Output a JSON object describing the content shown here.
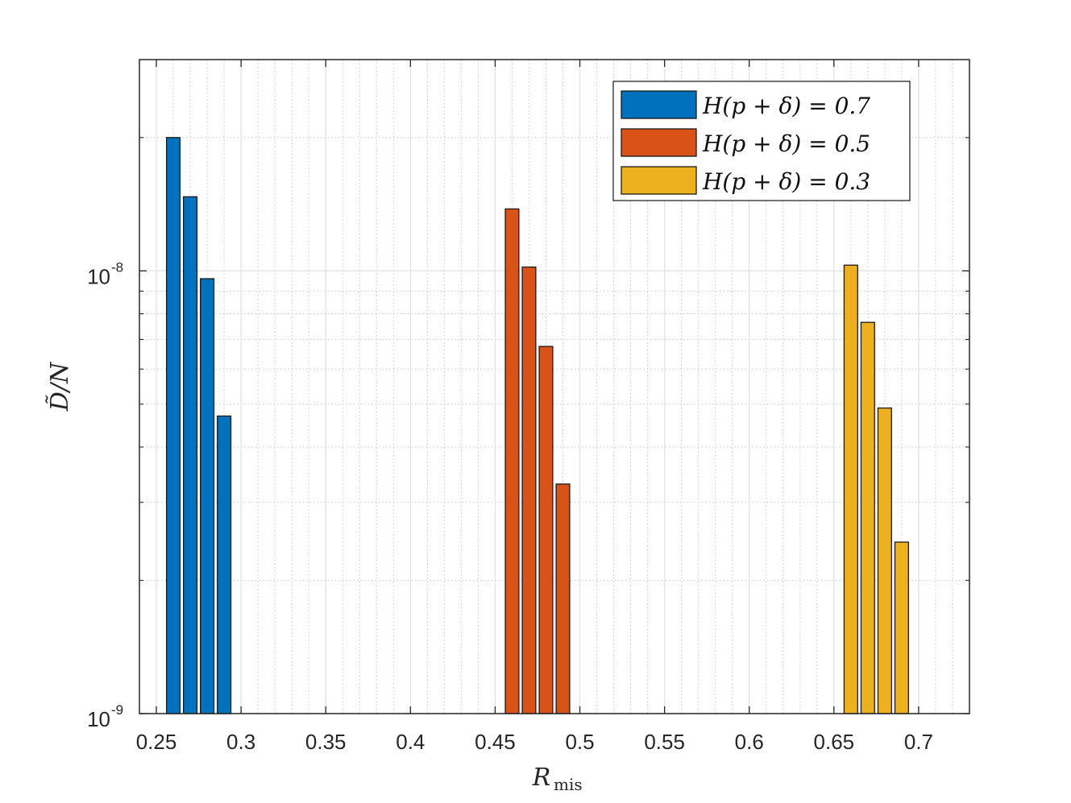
{
  "chart_data": {
    "type": "bar",
    "yscale": "log",
    "xlabel": "R",
    "xlabel_subscript": "mis",
    "ylabel": "D̃/N",
    "xlim": [
      0.24,
      0.73
    ],
    "ylim": [
      1e-09,
      3e-08
    ],
    "grid": true,
    "minor_grid": true,
    "legend_position": "top-right",
    "x_ticks": [
      0.25,
      0.3,
      0.35,
      0.4,
      0.45,
      0.5,
      0.55,
      0.6,
      0.65,
      0.7
    ],
    "x_tick_labels": [
      "0.25",
      "0.3",
      "0.35",
      "0.4",
      "0.45",
      "0.5",
      "0.55",
      "0.6",
      "0.65",
      "0.7"
    ],
    "y_ticks": [
      {
        "value": 1e-09,
        "base": "10",
        "exponent": "-9"
      },
      {
        "value": 1e-08,
        "base": "10",
        "exponent": "-8"
      }
    ],
    "bar_width": 0.008,
    "series": [
      {
        "name": "H(p + δ) = 0.7",
        "color": "#0072BD",
        "x": [
          0.26,
          0.27,
          0.28,
          0.29
        ],
        "values": [
          2e-08,
          1.47e-08,
          9.6e-09,
          4.7e-09
        ]
      },
      {
        "name": "H(p + δ) = 0.5",
        "color": "#D95319",
        "x": [
          0.46,
          0.47,
          0.48,
          0.49
        ],
        "values": [
          1.38e-08,
          1.02e-08,
          6.75e-09,
          3.3e-09
        ]
      },
      {
        "name": "H(p + δ) = 0.3",
        "color": "#EDB120",
        "x": [
          0.66,
          0.67,
          0.68,
          0.69
        ],
        "values": [
          1.03e-08,
          7.65e-09,
          4.9e-09,
          2.44e-09
        ]
      }
    ]
  }
}
